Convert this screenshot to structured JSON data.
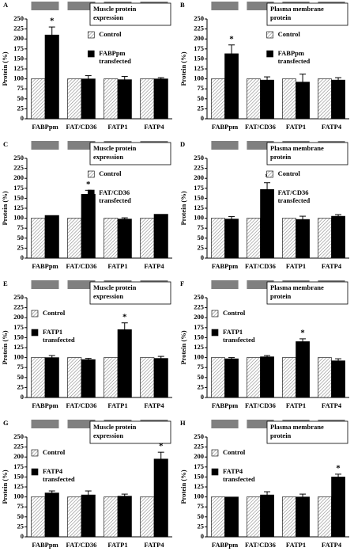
{
  "chart_data": [
    {
      "type": "bar",
      "panel": "A",
      "box_title": "Muscle protein expression",
      "ylabel": "Protein (%)",
      "categories": [
        "FABPpm",
        "FAT/CD36",
        "FATP1",
        "FATP4"
      ],
      "series": [
        {
          "name": "Control",
          "color": "#8a8a8a",
          "pattern": "hatch",
          "values": [
            100,
            100,
            100,
            100
          ]
        },
        {
          "name": "FABPpm transfected",
          "color": "#000000",
          "values": [
            210,
            100,
            98,
            100
          ],
          "errors": [
            20,
            8,
            8,
            3
          ]
        }
      ],
      "annotations": [
        {
          "text": "*",
          "x": "FABPpm"
        }
      ],
      "legend": "upper right",
      "ylim": [
        0,
        250
      ],
      "yticks": [
        0,
        25,
        50,
        75,
        100,
        125,
        150,
        175,
        200,
        225,
        250
      ]
    },
    {
      "type": "bar",
      "panel": "B",
      "box_title": "Plasma membrane protein",
      "ylabel": "Protein (%)",
      "categories": [
        "FABPpm",
        "FAT/CD36",
        "FATP1",
        "FATP4"
      ],
      "series": [
        {
          "name": "Control",
          "color": "#8a8a8a",
          "pattern": "hatch",
          "values": [
            100,
            100,
            100,
            100
          ]
        },
        {
          "name": "FABPpm transfected",
          "color": "#000000",
          "values": [
            163,
            97,
            92,
            97
          ],
          "errors": [
            22,
            8,
            20,
            6
          ]
        }
      ],
      "annotations": [
        {
          "text": "*",
          "x": "FABPpm"
        }
      ],
      "legend": "upper right",
      "ylim": [
        0,
        250
      ],
      "yticks": [
        0,
        25,
        50,
        75,
        100,
        125,
        150,
        175,
        200,
        225,
        250
      ]
    },
    {
      "type": "bar",
      "panel": "C",
      "box_title": "Muscle protein expression",
      "ylabel": "Protein (%)",
      "categories": [
        "FABPpm",
        "FAT/CD36",
        "FATP1",
        "FATP4"
      ],
      "series": [
        {
          "name": "Control",
          "color": "#8a8a8a",
          "pattern": "hatch",
          "values": [
            100,
            100,
            100,
            100
          ]
        },
        {
          "name": "FAT/CD36 transfected",
          "color": "#000000",
          "values": [
            107,
            160,
            98,
            110
          ],
          "errors": [
            0,
            10,
            3,
            0
          ]
        }
      ],
      "annotations": [
        {
          "text": "*",
          "x": "FAT/CD36"
        }
      ],
      "legend": "upper right",
      "ylim": [
        0,
        250
      ],
      "yticks": [
        0,
        25,
        50,
        75,
        100,
        125,
        150,
        175,
        200,
        225,
        250
      ]
    },
    {
      "type": "bar",
      "panel": "D",
      "box_title": "Plasma membrane protein",
      "ylabel": "Protein (%)",
      "categories": [
        "FABPpm",
        "FAT/CD36",
        "FATP1",
        "FATP4"
      ],
      "series": [
        {
          "name": "Control",
          "color": "#8a8a8a",
          "pattern": "hatch",
          "values": [
            100,
            100,
            100,
            100
          ]
        },
        {
          "name": "FAT/CD36 transfected",
          "color": "#000000",
          "values": [
            98,
            172,
            97,
            105
          ],
          "errors": [
            6,
            17,
            8,
            4
          ]
        }
      ],
      "annotations": [
        {
          "text": "*",
          "x": "FAT/CD36"
        }
      ],
      "legend": "upper right",
      "ylim": [
        0,
        250
      ],
      "yticks": [
        0,
        25,
        50,
        75,
        100,
        125,
        150,
        175,
        200,
        225,
        250
      ]
    },
    {
      "type": "bar",
      "panel": "E",
      "box_title": "Muscle protein expression",
      "ylabel": "Protein (%)",
      "categories": [
        "FABPpm",
        "FAT/CD36",
        "FATP1",
        "FATP4"
      ],
      "series": [
        {
          "name": "Control",
          "color": "#8a8a8a",
          "pattern": "hatch",
          "values": [
            100,
            100,
            100,
            100
          ]
        },
        {
          "name": "FATP1 transfected",
          "color": "#000000",
          "values": [
            100,
            95,
            170,
            98
          ],
          "errors": [
            5,
            3,
            17,
            5
          ]
        }
      ],
      "annotations": [
        {
          "text": "*",
          "x": "FATP1"
        }
      ],
      "legend": "upper left",
      "ylim": [
        0,
        250
      ],
      "yticks": [
        0,
        25,
        50,
        75,
        100,
        125,
        150,
        175,
        200,
        225,
        250
      ]
    },
    {
      "type": "bar",
      "panel": "F",
      "box_title": "Plasma membrane protein",
      "ylabel": "Protein (%)",
      "categories": [
        "FABPpm",
        "FAT/CD36",
        "FATP1",
        "FATP4"
      ],
      "series": [
        {
          "name": "Control",
          "color": "#8a8a8a",
          "pattern": "hatch",
          "values": [
            100,
            100,
            100,
            100
          ]
        },
        {
          "name": "FATP1 transfected",
          "color": "#000000",
          "values": [
            97,
            102,
            140,
            92
          ],
          "errors": [
            3,
            3,
            7,
            5
          ]
        }
      ],
      "annotations": [
        {
          "text": "*",
          "x": "FATP1"
        }
      ],
      "legend": "upper left",
      "ylim": [
        0,
        250
      ],
      "yticks": [
        0,
        25,
        50,
        75,
        100,
        125,
        150,
        175,
        200,
        225,
        250
      ]
    },
    {
      "type": "bar",
      "panel": "G",
      "box_title": "Muscle protein expression",
      "ylabel": "Protein (%)",
      "categories": [
        "FABPpm",
        "FAT/CD36",
        "FATP1",
        "FATP4"
      ],
      "series": [
        {
          "name": "Control",
          "color": "#8a8a8a",
          "pattern": "hatch",
          "values": [
            100,
            100,
            100,
            100
          ]
        },
        {
          "name": "FATP4 transfected",
          "color": "#000000",
          "values": [
            110,
            105,
            102,
            195
          ],
          "errors": [
            5,
            10,
            5,
            17
          ]
        }
      ],
      "annotations": [
        {
          "text": "*",
          "x": "FATP4"
        }
      ],
      "legend": "upper left",
      "ylim": [
        0,
        250
      ],
      "yticks": [
        0,
        25,
        50,
        75,
        100,
        125,
        150,
        175,
        200,
        225,
        250
      ]
    },
    {
      "type": "bar",
      "panel": "H",
      "box_title": "Plasma membrane protein",
      "ylabel": "Protein (%)",
      "categories": [
        "FABPpm",
        "FAT/CD36",
        "FATP1",
        "FATP4"
      ],
      "series": [
        {
          "name": "Control",
          "color": "#8a8a8a",
          "pattern": "hatch",
          "values": [
            100,
            100,
            100,
            100
          ]
        },
        {
          "name": "FATP4 transfected",
          "color": "#000000",
          "values": [
            100,
            105,
            100,
            150
          ],
          "errors": [
            0,
            8,
            7,
            7
          ]
        }
      ],
      "annotations": [
        {
          "text": "*",
          "x": "FATP4"
        }
      ],
      "legend": "upper left",
      "ylim": [
        0,
        250
      ],
      "yticks": [
        0,
        25,
        50,
        75,
        100,
        125,
        150,
        175,
        200,
        225,
        250
      ]
    }
  ]
}
